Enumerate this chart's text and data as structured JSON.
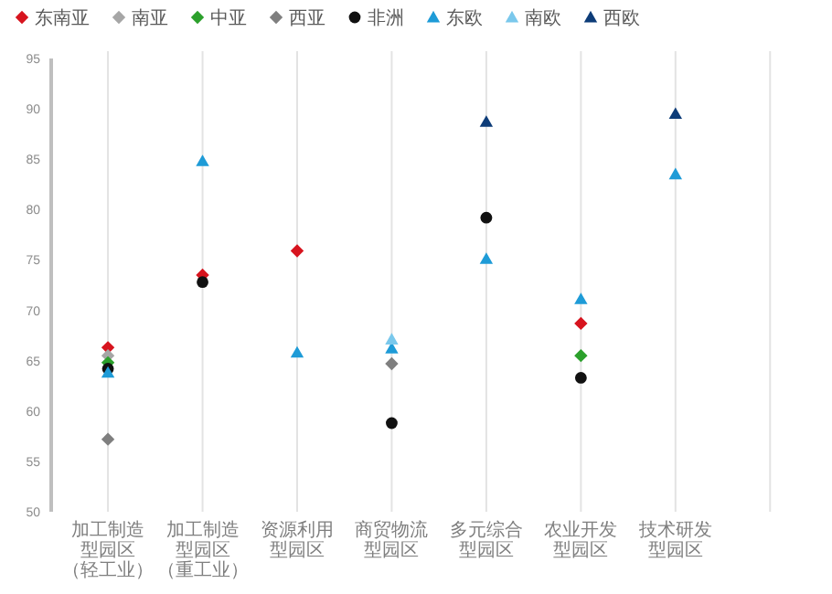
{
  "chart_data": {
    "type": "scatter",
    "categories": [
      "加工制造型园区（轻工业）",
      "加工制造型园区（重工业）",
      "资源利用型园区",
      "商贸物流型园区",
      "多元综合型园区",
      "农业开发型园区",
      "技术研发型园区",
      null
    ],
    "ylim": [
      50,
      95
    ],
    "yticks": [
      50,
      55,
      60,
      65,
      70,
      75,
      80,
      85,
      90,
      95
    ],
    "grid": "x",
    "legend": "top left",
    "series": [
      {
        "name": "东南亚",
        "color": "#d7141e",
        "marker": "diamond",
        "values": [
          66.3,
          73.5,
          75.9,
          null,
          null,
          68.7,
          null,
          null
        ]
      },
      {
        "name": "南亚",
        "color": "#a6a6a6",
        "marker": "diamond",
        "values": [
          65.5,
          null,
          null,
          null,
          null,
          null,
          null,
          null
        ]
      },
      {
        "name": "中亚",
        "color": "#2ca02c",
        "marker": "diamond",
        "values": [
          64.8,
          null,
          null,
          null,
          null,
          65.5,
          null,
          null
        ]
      },
      {
        "name": "西亚",
        "color": "#7f7f7f",
        "marker": "diamond",
        "values": [
          57.2,
          null,
          null,
          64.7,
          null,
          null,
          null,
          null
        ]
      },
      {
        "name": "非洲",
        "color": "#111111",
        "marker": "circle",
        "values": [
          64.2,
          72.8,
          null,
          58.8,
          79.2,
          63.3,
          null,
          null
        ]
      },
      {
        "name": "东欧",
        "color": "#1e9bd7",
        "marker": "triangle",
        "values": [
          63.8,
          84.8,
          65.8,
          66.2,
          75.1,
          71.1,
          83.5,
          null
        ]
      },
      {
        "name": "南欧",
        "color": "#7ac8ec",
        "marker": "triangle",
        "values": [
          null,
          null,
          null,
          67.1,
          null,
          null,
          null,
          null
        ]
      },
      {
        "name": "西欧",
        "color": "#0d3c78",
        "marker": "triangle",
        "values": [
          null,
          null,
          null,
          null,
          88.7,
          null,
          89.5,
          null
        ]
      }
    ]
  }
}
